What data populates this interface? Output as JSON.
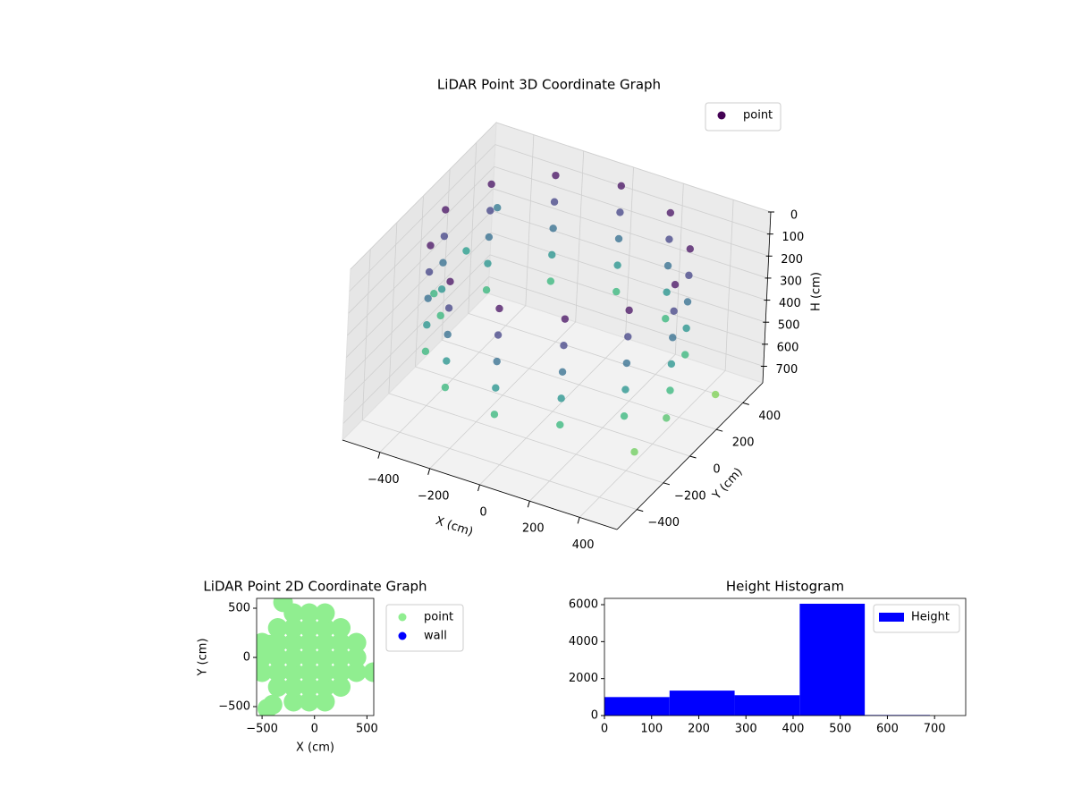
{
  "chart_data": [
    {
      "type": "scatter3d",
      "title": "LiDAR Point 3D Coordinate Graph",
      "xlabel": "X (cm)",
      "ylabel": "Y (cm)",
      "zlabel": "H (cm)",
      "colormap": "viridis",
      "zinverted": true,
      "xlim": [
        -550,
        550
      ],
      "ylim": [
        -550,
        550
      ],
      "zlim": [
        0,
        775
      ],
      "xticks": [
        {
          "value": -400,
          "label": "−400"
        },
        {
          "value": -200,
          "label": "−200"
        },
        0,
        200,
        400
      ],
      "yticks": [
        {
          "value": -400,
          "label": "−400"
        },
        {
          "value": -200,
          "label": "−200"
        },
        0,
        200,
        400
      ],
      "zticks": [
        0,
        100,
        200,
        300,
        400,
        500,
        600,
        700
      ],
      "series": [
        {
          "name": "point",
          "color": "#440154",
          "x": [
            460,
            398,
            230,
            0,
            -230,
            -398,
            -460,
            -398,
            -230,
            0,
            230,
            398,
            460,
            398,
            230,
            0,
            -230,
            -398,
            -460,
            -398,
            -230,
            0,
            230,
            398,
            460,
            398,
            230,
            0,
            -230,
            -398,
            -460,
            -398,
            -230,
            0,
            230,
            398,
            460,
            398,
            230,
            0,
            -230,
            -398,
            -460,
            -398,
            -230,
            0,
            230,
            398,
            460,
            398,
            230,
            0,
            -230,
            -398,
            -460,
            -398,
            -230,
            0,
            230,
            398,
            -520,
            -480,
            -540,
            500,
            540,
            480
          ],
          "y": [
            0,
            230,
            398,
            460,
            398,
            230,
            0,
            -230,
            -398,
            -460,
            -398,
            -230,
            0,
            230,
            398,
            460,
            398,
            230,
            0,
            -230,
            -398,
            -460,
            -398,
            -230,
            0,
            230,
            398,
            460,
            398,
            230,
            0,
            -230,
            -398,
            -460,
            -398,
            -230,
            0,
            230,
            398,
            460,
            398,
            230,
            0,
            -230,
            -398,
            -460,
            -398,
            -230,
            0,
            230,
            398,
            460,
            398,
            230,
            0,
            -230,
            -398,
            -460,
            -398,
            -230,
            300,
            450,
            100,
            -100,
            200,
            -300
          ],
          "h": [
            30,
            30,
            30,
            30,
            30,
            30,
            30,
            30,
            30,
            30,
            30,
            30,
            150,
            150,
            150,
            150,
            150,
            150,
            150,
            150,
            150,
            150,
            150,
            150,
            270,
            270,
            270,
            270,
            270,
            270,
            270,
            270,
            270,
            270,
            270,
            270,
            390,
            390,
            390,
            390,
            390,
            390,
            390,
            390,
            390,
            390,
            390,
            390,
            510,
            510,
            510,
            510,
            510,
            510,
            510,
            510,
            510,
            510,
            510,
            510,
            420,
            300,
            500,
            560,
            620,
            600
          ]
        }
      ]
    },
    {
      "type": "scatter",
      "title": "LiDAR Point 2D Coordinate Graph",
      "xlabel": "X (cm)",
      "ylabel": "Y (cm)",
      "xlim": [
        -552,
        565
      ],
      "ylim": [
        -591,
        600
      ],
      "xticks": [
        {
          "value": -500,
          "label": "−500"
        },
        0,
        500
      ],
      "yticks": [
        {
          "value": -500,
          "label": "−500"
        },
        0,
        500
      ],
      "series": [
        {
          "name": "point",
          "color": "#90ee90",
          "x": [
            -500,
            -500,
            -500,
            -350,
            -350,
            -350,
            -350,
            -350,
            -200,
            -200,
            -200,
            -200,
            -200,
            -200,
            -200,
            -50,
            -50,
            -50,
            -50,
            -50,
            -50,
            -50,
            100,
            100,
            100,
            100,
            100,
            100,
            100,
            250,
            250,
            250,
            250,
            250,
            400,
            400,
            400,
            560,
            -450,
            -430,
            -300,
            -400
          ],
          "y": [
            -150,
            0,
            150,
            -300,
            -150,
            0,
            150,
            300,
            -450,
            -300,
            -150,
            0,
            150,
            300,
            450,
            -450,
            -300,
            -150,
            0,
            150,
            300,
            450,
            -450,
            -300,
            -150,
            0,
            150,
            300,
            450,
            -300,
            -150,
            0,
            150,
            300,
            -150,
            0,
            150,
            -150,
            -520,
            130,
            560,
            -480
          ]
        },
        {
          "name": "wall",
          "color": "#0000ff",
          "x": [],
          "y": []
        }
      ]
    },
    {
      "type": "histogram",
      "title": "Height Histogram",
      "xlim": [
        0,
        766
      ],
      "ylim": [
        0,
        6340
      ],
      "xticks": [
        0,
        100,
        200,
        300,
        400,
        500,
        600,
        700
      ],
      "yticks": [
        0,
        2000,
        4000,
        6000
      ],
      "series": [
        {
          "name": "Height",
          "color": "#0000ff",
          "bins": [
            0,
            138,
            276,
            414,
            552,
            690
          ],
          "values": [
            1000,
            1350,
            1100,
            6050,
            30
          ]
        }
      ]
    }
  ]
}
